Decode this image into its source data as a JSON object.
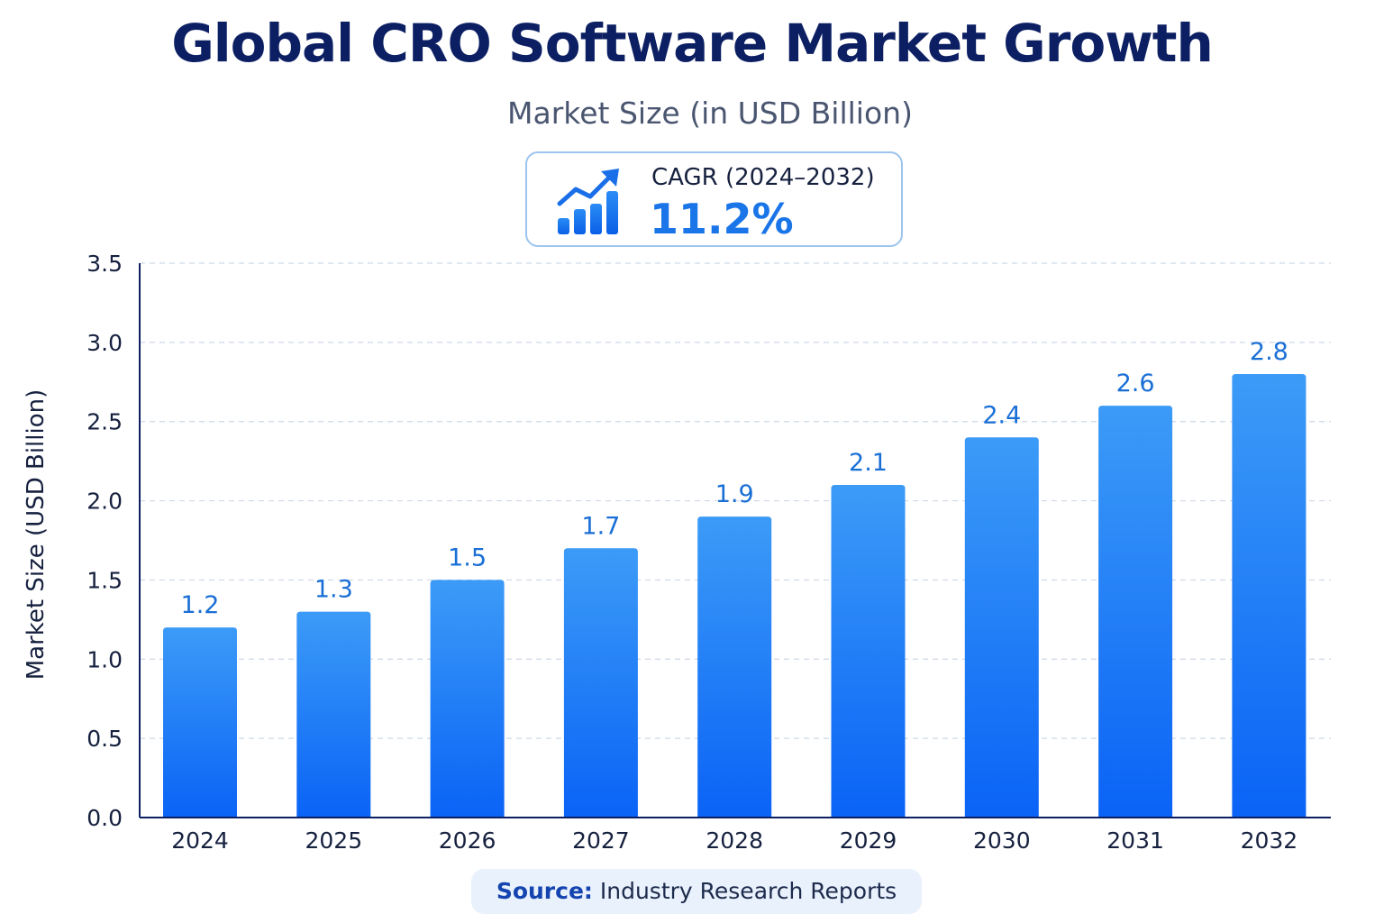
{
  "colors": {
    "title": "#0c1f63",
    "subtitle": "#4a5670",
    "bar_top": "#3c9bf7",
    "bar_bottom": "#0a63f6",
    "data_label": "#1a6fd6",
    "axis": "#0c1f63",
    "grid": "#cdd9e6",
    "accent": "#1a75e8",
    "source_bg": "#e9f1fc"
  },
  "cagr": {
    "icon": "growth-chart-icon",
    "label": "CAGR (2024–2032)",
    "value": "11.2%"
  },
  "source": {
    "label": "Source:",
    "text": "Industry Research Reports"
  },
  "chart_data": {
    "type": "bar",
    "title": "Global CRO Software Market Growth",
    "subtitle": "Market Size (in USD Billion)",
    "xlabel": "",
    "ylabel": "Market Size (USD Billion)",
    "categories": [
      "2024",
      "2025",
      "2026",
      "2027",
      "2028",
      "2029",
      "2030",
      "2031",
      "2032"
    ],
    "values": [
      1.2,
      1.3,
      1.5,
      1.7,
      1.9,
      2.1,
      2.4,
      2.6,
      2.8
    ],
    "value_labels": [
      "1.2",
      "1.3",
      "1.5",
      "1.7",
      "1.9",
      "2.1",
      "2.4",
      "2.6",
      "2.8"
    ],
    "ylim": [
      0,
      3.5
    ],
    "yticks": [
      "0.0",
      "0.5",
      "1.0",
      "1.5",
      "2.0",
      "2.5",
      "3.0",
      "3.5"
    ],
    "grid": true,
    "legend": "none"
  }
}
